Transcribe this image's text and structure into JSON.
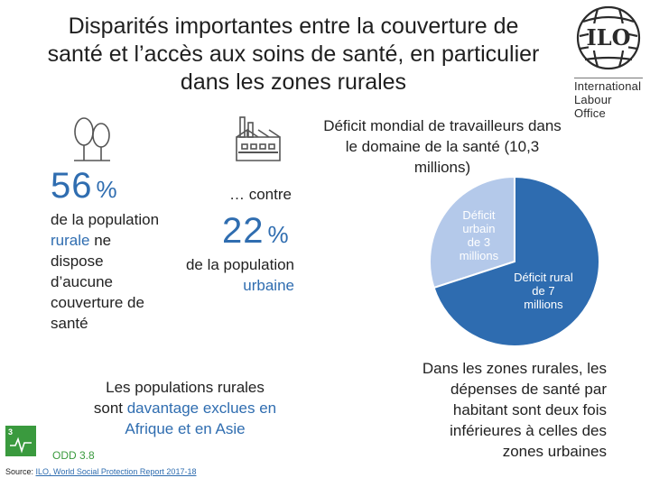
{
  "title": {
    "line1": "Disparités importantes entre la couverture de",
    "line2": "santé et l’accès aux soins de santé, en particulier",
    "line3": "dans les zones rurales"
  },
  "logo": {
    "line1": "International",
    "line2": "Labour",
    "line3": "Office"
  },
  "rural": {
    "value": "56",
    "unit": "%",
    "text_a": "de la population",
    "text_b": "rurale",
    "text_c": " ne",
    "text_d": "dispose",
    "text_e": "d’aucune",
    "text_f": "couverture de",
    "text_g": "santé"
  },
  "urban": {
    "contre": "… contre",
    "value": "22",
    "unit": "%",
    "text_a": "de la population",
    "text_b": "urbaine"
  },
  "rural_note": {
    "line1": "Les populations rurales",
    "line2a": "sont ",
    "line2b": "davantage exclues en",
    "line3": "Afrique et en Asie"
  },
  "odd": {
    "label": "ODD 3.8",
    "badge_number": "3"
  },
  "source": {
    "prefix": "Source: ",
    "link": "ILO, World Social Protection Report 2017-18"
  },
  "right_note": {
    "line1": "Dans les zones rurales, les",
    "line2": "dépenses de santé par",
    "line3": "habitant sont deux fois",
    "line4": "inférieures à celles des",
    "line5": "zones urbaines"
  },
  "chart_data": {
    "type": "pie",
    "title": "Déficit mondial de travailleurs dans le domaine de la santé (10,3 millions)",
    "title_line1": "Déficit mondial de travailleurs dans",
    "title_line2": "le domaine de la santé (10,3",
    "title_line3": "millions)",
    "slices": [
      {
        "name": "Déficit urbain de 3 millions",
        "value": 3,
        "color": "#b4c9ea",
        "label_lines": [
          "Déficit",
          "urbain",
          "de 3",
          "millions"
        ]
      },
      {
        "name": "Déficit rural de 7 millions",
        "value": 7,
        "color": "#2e6cb0",
        "label_lines": [
          "Déficit rural",
          "de 7",
          "millions"
        ]
      }
    ]
  },
  "colors": {
    "accent": "#2f6db0",
    "odd_green": "#3a9a3e",
    "icon_gray": "#555555"
  },
  "icons": [
    "trees-icon",
    "factory-icon",
    "ilo-globe-icon",
    "sdg-health-icon"
  ]
}
